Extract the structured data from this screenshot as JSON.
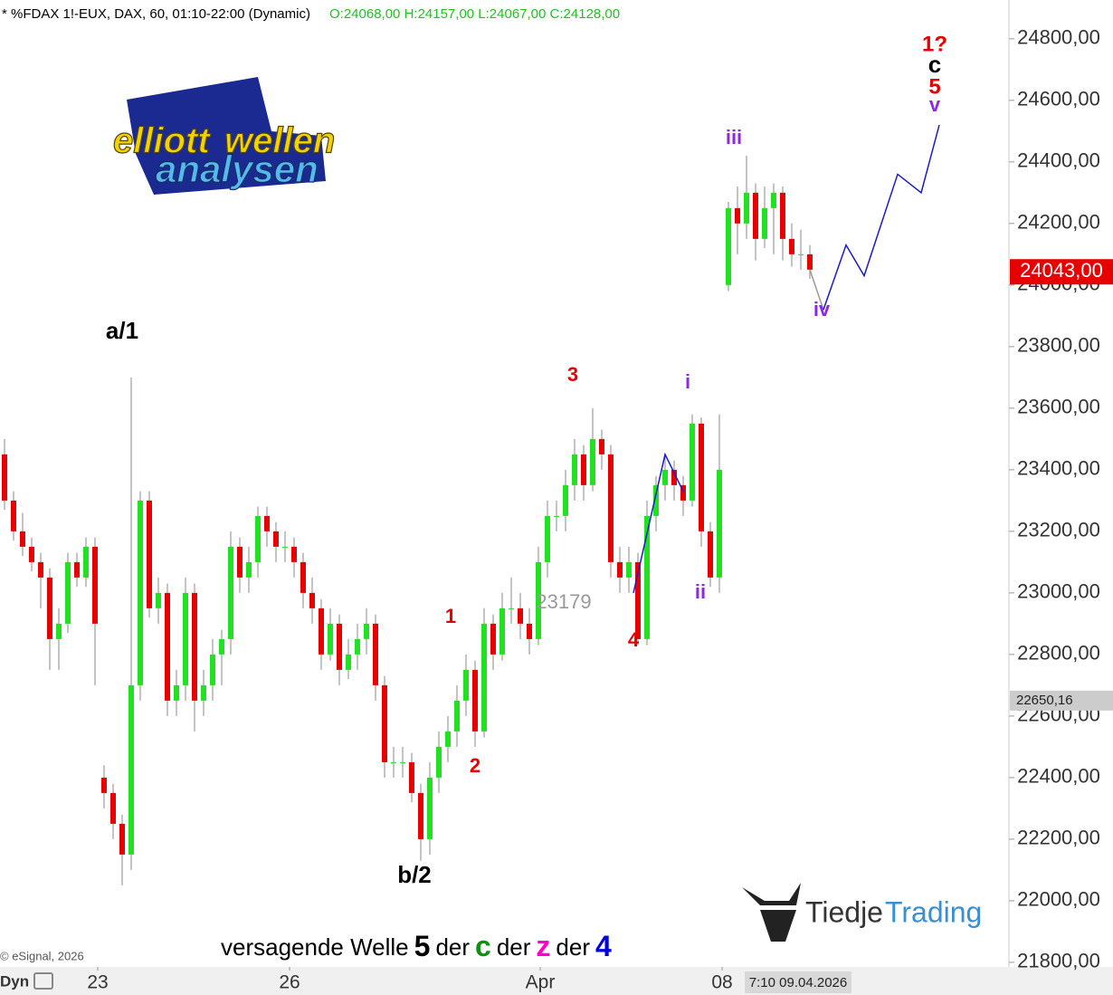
{
  "header": {
    "symbol": "* %FDAX 1!-EUX, DAX, 60, 01:10-22:00 (Dynamic)",
    "ohlc": "O:24068,00 H:24157,00 L:24067,00 C:24128,00",
    "copyright": "© eSignal, 2026",
    "mode": "Dyn",
    "timestamp": "7:10 09.04.2026"
  },
  "logos": {
    "elliott": [
      "elliott",
      "wellen",
      "analysen"
    ],
    "tiedje": [
      "Tiedje",
      "Trading"
    ]
  },
  "chart_data": {
    "type": "candlestick",
    "up_color": "#22e022",
    "down_color": "#e60000",
    "xlim": [
      -0.5,
      111
    ],
    "ylim": [
      21785,
      24926
    ],
    "xticks": [
      {
        "value": 10.3,
        "label": "23"
      },
      {
        "value": 31.5,
        "label": "26"
      },
      {
        "value": 59.2,
        "label": "Apr"
      },
      {
        "value": 79.3,
        "label": "08"
      }
    ],
    "yticks": [
      {
        "value": 21800,
        "label": "21800,00"
      },
      {
        "value": 22000,
        "label": "22000,00"
      },
      {
        "value": 22200,
        "label": "22200,00"
      },
      {
        "value": 22400,
        "label": "22400,00"
      },
      {
        "value": 22600,
        "label": "22600,00"
      },
      {
        "value": 22800,
        "label": "22800,00"
      },
      {
        "value": 23000,
        "label": "23000,00"
      },
      {
        "value": 23200,
        "label": "23200,00"
      },
      {
        "value": 23400,
        "label": "23400,00"
      },
      {
        "value": 23600,
        "label": "23600,00"
      },
      {
        "value": 23800,
        "label": "23800,00"
      },
      {
        "value": 24000,
        "label": "24000,00"
      },
      {
        "value": 24200,
        "label": "24200,00"
      },
      {
        "value": 24400,
        "label": "24400,00"
      },
      {
        "value": 24600,
        "label": "24600,00"
      },
      {
        "value": 24800,
        "label": "24800,00"
      }
    ],
    "price_markers": [
      {
        "value": 24043,
        "label": "24043,00",
        "color": "#e60000"
      },
      {
        "value": 22650.16,
        "label": "22650,16",
        "color": "#cccccc"
      }
    ],
    "ohlc": [
      [
        23450,
        23500,
        23270,
        23300
      ],
      [
        23300,
        23330,
        23170,
        23200
      ],
      [
        23200,
        23260,
        23120,
        23150
      ],
      [
        23150,
        23180,
        23070,
        23100
      ],
      [
        23100,
        23130,
        22950,
        23050
      ],
      [
        23050,
        23080,
        22750,
        22850
      ],
      [
        22850,
        22950,
        22750,
        22900
      ],
      [
        22900,
        23130,
        22870,
        23100
      ],
      [
        23100,
        23130,
        23020,
        23050
      ],
      [
        23050,
        23180,
        23020,
        23150
      ],
      [
        23150,
        23180,
        22700,
        22900
      ],
      [
        22400,
        22440,
        22300,
        22350
      ],
      [
        22350,
        22380,
        22200,
        22250
      ],
      [
        22250,
        22280,
        22050,
        22150
      ],
      [
        22150,
        23700,
        22100,
        22700
      ],
      [
        22700,
        23330,
        22650,
        23300
      ],
      [
        23300,
        23330,
        22920,
        22950
      ],
      [
        22950,
        23050,
        22900,
        23000
      ],
      [
        23000,
        23030,
        22600,
        22650
      ],
      [
        22650,
        22750,
        22600,
        22700
      ],
      [
        22700,
        23050,
        22650,
        23000
      ],
      [
        23000,
        23030,
        22550,
        22650
      ],
      [
        22650,
        22750,
        22600,
        22700
      ],
      [
        22700,
        22850,
        22650,
        22800
      ],
      [
        22800,
        22880,
        22700,
        22850
      ],
      [
        22850,
        23200,
        22800,
        23150
      ],
      [
        23150,
        23180,
        23000,
        23050
      ],
      [
        23050,
        23150,
        23000,
        23100
      ],
      [
        23100,
        23280,
        23050,
        23250
      ],
      [
        23250,
        23280,
        23150,
        23200
      ],
      [
        23200,
        23230,
        23100,
        23150
      ],
      [
        23150,
        23200,
        23100,
        23150
      ],
      [
        23150,
        23180,
        23050,
        23100
      ],
      [
        23100,
        23130,
        22950,
        23000
      ],
      [
        23000,
        23050,
        22900,
        22950
      ],
      [
        22950,
        22980,
        22750,
        22800
      ],
      [
        22800,
        22950,
        22780,
        22900
      ],
      [
        22900,
        22930,
        22700,
        22750
      ],
      [
        22750,
        22850,
        22720,
        22800
      ],
      [
        22800,
        22900,
        22750,
        22850
      ],
      [
        22850,
        22950,
        22800,
        22900
      ],
      [
        22900,
        22930,
        22650,
        22700
      ],
      [
        22700,
        22730,
        22400,
        22450
      ],
      [
        22450,
        22500,
        22400,
        22450
      ],
      [
        22450,
        22500,
        22400,
        22450
      ],
      [
        22450,
        22480,
        22320,
        22350
      ],
      [
        22350,
        22380,
        22130,
        22200
      ],
      [
        22200,
        22450,
        22150,
        22400
      ],
      [
        22400,
        22550,
        22350,
        22500
      ],
      [
        22500,
        22600,
        22450,
        22550
      ],
      [
        22550,
        22700,
        22500,
        22650
      ],
      [
        22650,
        22800,
        22600,
        22750
      ],
      [
        22750,
        22780,
        22500,
        22550
      ],
      [
        22550,
        22950,
        22530,
        22900
      ],
      [
        22900,
        22930,
        22750,
        22800
      ],
      [
        22800,
        23000,
        22780,
        22950
      ],
      [
        22950,
        23050,
        22900,
        22950
      ],
      [
        22950,
        23000,
        22850,
        22900
      ],
      [
        22900,
        22950,
        22800,
        22850
      ],
      [
        22850,
        23150,
        22830,
        23100
      ],
      [
        23100,
        23300,
        23050,
        23250
      ],
      [
        23250,
        23300,
        23200,
        23250
      ],
      [
        23250,
        23400,
        23200,
        23350
      ],
      [
        23350,
        23500,
        23300,
        23450
      ],
      [
        23450,
        23480,
        23300,
        23350
      ],
      [
        23350,
        23600,
        23330,
        23500
      ],
      [
        23500,
        23530,
        23400,
        23450
      ],
      [
        23450,
        23480,
        23050,
        23100
      ],
      [
        23100,
        23150,
        23000,
        23050
      ],
      [
        23050,
        23150,
        23000,
        23100
      ],
      [
        23100,
        23130,
        22830,
        22850
      ],
      [
        22850,
        23300,
        22830,
        23250
      ],
      [
        23250,
        23380,
        23200,
        23350
      ],
      [
        23350,
        23450,
        23300,
        23400
      ],
      [
        23400,
        23430,
        23300,
        23350
      ],
      [
        23350,
        23380,
        23250,
        23300
      ],
      [
        23300,
        23580,
        23280,
        23550
      ],
      [
        23550,
        23570,
        23150,
        23200
      ],
      [
        23200,
        23230,
        23020,
        23050
      ],
      [
        23050,
        23580,
        23000,
        23400
      ],
      [
        24000,
        24270,
        23980,
        24250
      ],
      [
        24250,
        24320,
        24100,
        24200
      ],
      [
        24200,
        24420,
        24150,
        24300
      ],
      [
        24300,
        24330,
        24080,
        24150
      ],
      [
        24150,
        24320,
        24120,
        24250
      ],
      [
        24250,
        24330,
        24100,
        24300
      ],
      [
        24300,
        24320,
        24080,
        24150
      ],
      [
        24150,
        24200,
        24060,
        24100
      ],
      [
        24100,
        24180,
        24050,
        24100
      ],
      [
        24100,
        24130,
        24020,
        24050
      ]
    ],
    "lines": [
      {
        "color": "#999999",
        "x": [
          89,
          90.5
        ],
        "values": [
          24050,
          23920
        ]
      },
      {
        "color": "#1a1acc",
        "x": [
          90.5,
          93,
          95,
          98.7,
          101.3,
          103.3
        ],
        "values": [
          23920,
          24130,
          24030,
          24360,
          24300,
          24520
        ]
      },
      {
        "color": "#1a1acc",
        "x": [
          69.5,
          73,
          75
        ],
        "values": [
          23000,
          23450,
          23330
        ]
      }
    ],
    "annotations": [
      {
        "text": "a/1",
        "color": "#000000"
      },
      {
        "text": "b/2",
        "color": "#000000"
      },
      {
        "text": "1",
        "color": "#e60000"
      },
      {
        "text": "2",
        "color": "#e60000"
      },
      {
        "text": "3",
        "color": "#e60000"
      },
      {
        "text": "4",
        "color": "#e60000"
      },
      {
        "text": "23179",
        "color": "#999999"
      },
      {
        "text": "i",
        "color": "#8a2be2"
      },
      {
        "text": "ii",
        "color": "#8a2be2"
      },
      {
        "text": "iii",
        "color": "#8a2be2"
      },
      {
        "text": "iv",
        "color": "#8a2be2"
      },
      {
        "text": "v",
        "color": "#8a2be2"
      },
      {
        "text": "1?",
        "color": "#e60000"
      },
      {
        "text": "c",
        "color": "#000000"
      },
      {
        "text": "5",
        "color": "#e60000"
      }
    ],
    "caption": [
      {
        "text": "versagende Welle",
        "color": "#000000"
      },
      {
        "text": "5",
        "color": "#000000"
      },
      {
        "text": "der",
        "color": "#000000"
      },
      {
        "text": "c",
        "color": "#109010"
      },
      {
        "text": "der",
        "color": "#000000"
      },
      {
        "text": "z",
        "color": "#ff00cc"
      },
      {
        "text": "der",
        "color": "#000000"
      },
      {
        "text": "4",
        "color": "#0000dd"
      }
    ]
  }
}
